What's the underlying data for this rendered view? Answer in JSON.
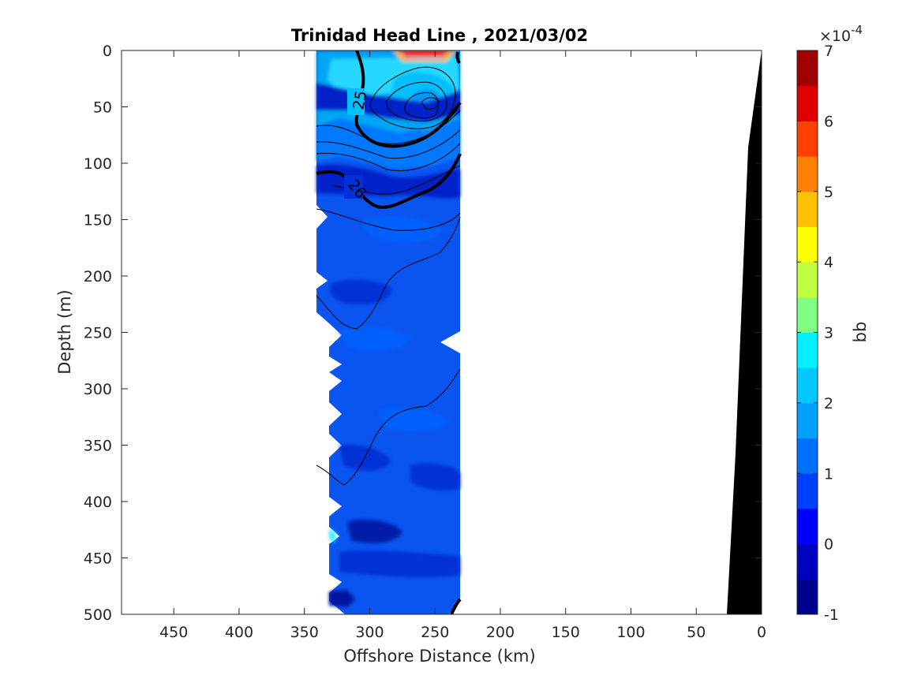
{
  "chart_data": {
    "type": "heatmap",
    "title": "Trinidad Head Line , 2021/03/02",
    "xlabel": "Offshore Distance (km)",
    "ylabel": "Depth (m)",
    "xlim": [
      490,
      0
    ],
    "ylim": [
      0,
      500
    ],
    "x_reversed": true,
    "y_reversed": true,
    "x_ticks": [
      450,
      400,
      350,
      300,
      250,
      200,
      150,
      100,
      50,
      0
    ],
    "y_ticks": [
      0,
      50,
      100,
      150,
      200,
      250,
      300,
      350,
      400,
      450,
      500
    ],
    "data_extent_x": [
      340,
      230
    ],
    "colorbar": {
      "label": "bb",
      "exponent_label": "×10",
      "exponent_power": "-4",
      "range": [
        -1,
        7
      ],
      "ticks": [
        -1,
        0,
        1,
        2,
        3,
        4,
        5,
        6,
        7
      ],
      "levels": 16,
      "colors": [
        "#00008f",
        "#0000bf",
        "#0000ff",
        "#0040ff",
        "#0070ff",
        "#00a0ff",
        "#00c8ff",
        "#00f0ff",
        "#40ffc0",
        "#80ff80",
        "#c0ff40",
        "#ffff00",
        "#ffc000",
        "#ff8000",
        "#ff4000",
        "#e00000",
        "#a00000"
      ]
    },
    "contours": [
      {
        "label": "25",
        "style": "thick"
      },
      {
        "label": "26",
        "style": "thick"
      }
    ],
    "bathymetry": {
      "color": "#000000"
    }
  }
}
